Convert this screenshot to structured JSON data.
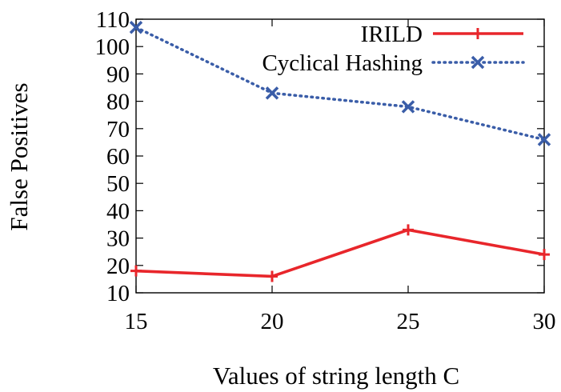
{
  "chart_data": {
    "type": "line",
    "title": "",
    "xlabel": "Values of string length C",
    "ylabel": "False Positives",
    "x": [
      15,
      20,
      25,
      30
    ],
    "xticks": [
      "15",
      "20",
      "25",
      "30"
    ],
    "yticks": [
      "10",
      "20",
      "30",
      "40",
      "50",
      "60",
      "70",
      "80",
      "90",
      "100",
      "110"
    ],
    "xlim": [
      15,
      30
    ],
    "ylim": [
      10,
      110
    ],
    "grid": false,
    "legend_position": "top-right",
    "series": [
      {
        "name": "IRILD",
        "values": [
          18,
          16,
          33,
          24
        ],
        "color": "#e8262b",
        "style": "solid",
        "marker": "plus"
      },
      {
        "name": "Cyclical Hashing",
        "values": [
          107,
          83,
          78,
          66
        ],
        "color": "#3a5da8",
        "style": "dotted",
        "marker": "x"
      }
    ]
  }
}
